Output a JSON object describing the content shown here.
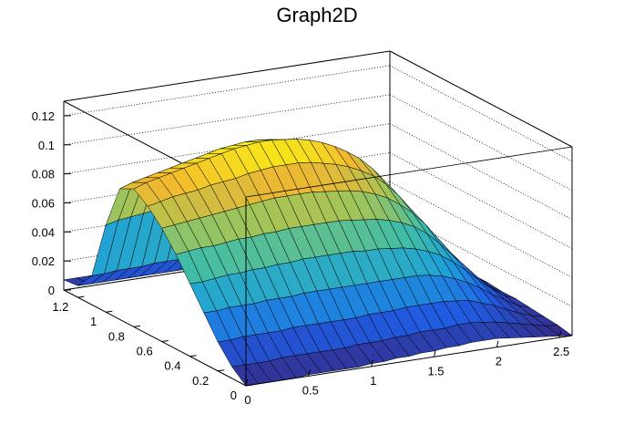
{
  "chart_data": {
    "type": "surface",
    "title": "Graph2D",
    "xlabel": "",
    "ylabel": "",
    "zlabel": "",
    "xlim": [
      0,
      2.6
    ],
    "ylim": [
      0,
      1.3
    ],
    "zlim": [
      0,
      0.13
    ],
    "x_ticks": [
      "0",
      "0.5",
      "1",
      "1.5",
      "2",
      "2.5"
    ],
    "y_ticks": [
      "0",
      "0.2",
      "0.4",
      "0.6",
      "0.8",
      "1",
      "1.2"
    ],
    "z_ticks": [
      "0",
      "0.02",
      "0.04",
      "0.06",
      "0.08",
      "0.1",
      "0.12"
    ],
    "z_tick_values": [
      0,
      0.02,
      0.04,
      0.06,
      0.08,
      0.1,
      0.12
    ],
    "x_tick_values": [
      0,
      0.5,
      1,
      1.5,
      2,
      2.5
    ],
    "y_tick_values": [
      0,
      0.2,
      0.4,
      0.6,
      0.8,
      1.0,
      1.2
    ],
    "grid": true,
    "palette": [
      "#352a87",
      "#1f5ee6",
      "#1ea0d8",
      "#40bda8",
      "#9fc45a",
      "#f2b830",
      "#f9fb0e"
    ],
    "mesh_color": "#000000",
    "surface_x": [
      0,
      0.1,
      0.2,
      0.3,
      0.4,
      0.5,
      0.6,
      0.7,
      0.8,
      0.9,
      1.0,
      1.1,
      1.2,
      1.3,
      1.4,
      1.5,
      1.6,
      1.7,
      1.8,
      1.9,
      2.0,
      2.1,
      2.2,
      2.3,
      2.4,
      2.5,
      2.6
    ],
    "surface_y": [
      0,
      0.1,
      0.2,
      0.3,
      0.4,
      0.5,
      0.6,
      0.7,
      0.8,
      0.9,
      1.0,
      1.1,
      1.2,
      1.3
    ],
    "surface_z_rows_by_x": [
      [
        0.0,
        0.008,
        0.02,
        0.035,
        0.05,
        0.065,
        0.078,
        0.088,
        0.095,
        0.09,
        0.06,
        0.02,
        0.008,
        0.007
      ],
      [
        0.0,
        0.008,
        0.02,
        0.035,
        0.05,
        0.066,
        0.079,
        0.09,
        0.098,
        0.093,
        0.062,
        0.02,
        0.008,
        0.007
      ],
      [
        0.0,
        0.008,
        0.021,
        0.036,
        0.051,
        0.067,
        0.08,
        0.092,
        0.1,
        0.095,
        0.063,
        0.021,
        0.008,
        0.007
      ],
      [
        0.0,
        0.008,
        0.021,
        0.036,
        0.052,
        0.067,
        0.081,
        0.093,
        0.102,
        0.097,
        0.064,
        0.021,
        0.008,
        0.007
      ],
      [
        0.0,
        0.009,
        0.021,
        0.036,
        0.052,
        0.068,
        0.082,
        0.094,
        0.104,
        0.099,
        0.065,
        0.021,
        0.008,
        0.007
      ],
      [
        0.001,
        0.009,
        0.021,
        0.037,
        0.053,
        0.069,
        0.083,
        0.096,
        0.106,
        0.101,
        0.066,
        0.022,
        0.008,
        0.007
      ],
      [
        0.001,
        0.009,
        0.022,
        0.037,
        0.053,
        0.069,
        0.084,
        0.097,
        0.108,
        0.103,
        0.067,
        0.022,
        0.008,
        0.007
      ],
      [
        0.001,
        0.009,
        0.022,
        0.037,
        0.054,
        0.07,
        0.085,
        0.098,
        0.11,
        0.105,
        0.068,
        0.022,
        0.008,
        0.007
      ],
      [
        0.001,
        0.009,
        0.022,
        0.038,
        0.054,
        0.07,
        0.086,
        0.1,
        0.112,
        0.107,
        0.069,
        0.022,
        0.008,
        0.007
      ],
      [
        0.001,
        0.009,
        0.022,
        0.038,
        0.055,
        0.071,
        0.087,
        0.101,
        0.113,
        0.108,
        0.07,
        0.023,
        0.008,
        0.007
      ],
      [
        0.002,
        0.01,
        0.022,
        0.038,
        0.055,
        0.071,
        0.087,
        0.102,
        0.114,
        0.109,
        0.07,
        0.023,
        0.008,
        0.007
      ],
      [
        0.002,
        0.01,
        0.022,
        0.038,
        0.055,
        0.071,
        0.087,
        0.102,
        0.114,
        0.109,
        0.07,
        0.023,
        0.008,
        0.007
      ],
      [
        0.003,
        0.01,
        0.023,
        0.038,
        0.055,
        0.071,
        0.087,
        0.102,
        0.113,
        0.108,
        0.069,
        0.023,
        0.008,
        0.007
      ],
      [
        0.003,
        0.011,
        0.023,
        0.038,
        0.055,
        0.071,
        0.086,
        0.101,
        0.112,
        0.106,
        0.068,
        0.022,
        0.008,
        0.007
      ],
      [
        0.004,
        0.011,
        0.023,
        0.038,
        0.054,
        0.07,
        0.085,
        0.099,
        0.11,
        0.104,
        0.066,
        0.022,
        0.008,
        0.007
      ],
      [
        0.004,
        0.012,
        0.024,
        0.038,
        0.054,
        0.069,
        0.084,
        0.097,
        0.107,
        0.101,
        0.064,
        0.021,
        0.008,
        0.007
      ],
      [
        0.005,
        0.012,
        0.024,
        0.038,
        0.053,
        0.068,
        0.082,
        0.094,
        0.103,
        0.097,
        0.061,
        0.02,
        0.008,
        0.007
      ],
      [
        0.005,
        0.012,
        0.024,
        0.038,
        0.052,
        0.066,
        0.079,
        0.09,
        0.098,
        0.092,
        0.058,
        0.019,
        0.008,
        0.007
      ],
      [
        0.006,
        0.013,
        0.024,
        0.037,
        0.05,
        0.063,
        0.075,
        0.085,
        0.092,
        0.086,
        0.054,
        0.018,
        0.008,
        0.007
      ],
      [
        0.006,
        0.013,
        0.023,
        0.035,
        0.047,
        0.059,
        0.069,
        0.078,
        0.084,
        0.078,
        0.049,
        0.016,
        0.008,
        0.007
      ],
      [
        0.006,
        0.012,
        0.022,
        0.032,
        0.043,
        0.053,
        0.062,
        0.069,
        0.074,
        0.069,
        0.043,
        0.015,
        0.007,
        0.007
      ],
      [
        0.005,
        0.011,
        0.019,
        0.028,
        0.037,
        0.045,
        0.053,
        0.058,
        0.062,
        0.058,
        0.036,
        0.013,
        0.007,
        0.006
      ],
      [
        0.004,
        0.009,
        0.016,
        0.023,
        0.03,
        0.036,
        0.042,
        0.046,
        0.049,
        0.045,
        0.029,
        0.011,
        0.006,
        0.006
      ],
      [
        0.003,
        0.007,
        0.012,
        0.017,
        0.022,
        0.027,
        0.031,
        0.034,
        0.036,
        0.033,
        0.021,
        0.009,
        0.005,
        0.005
      ],
      [
        0.002,
        0.005,
        0.008,
        0.012,
        0.015,
        0.018,
        0.02,
        0.022,
        0.023,
        0.021,
        0.014,
        0.007,
        0.004,
        0.004
      ],
      [
        0.001,
        0.003,
        0.005,
        0.007,
        0.009,
        0.01,
        0.011,
        0.012,
        0.012,
        0.011,
        0.008,
        0.005,
        0.003,
        0.003
      ],
      [
        0.0,
        0.002,
        0.003,
        0.004,
        0.005,
        0.005,
        0.006,
        0.006,
        0.006,
        0.006,
        0.005,
        0.003,
        0.002,
        0.002
      ]
    ]
  }
}
